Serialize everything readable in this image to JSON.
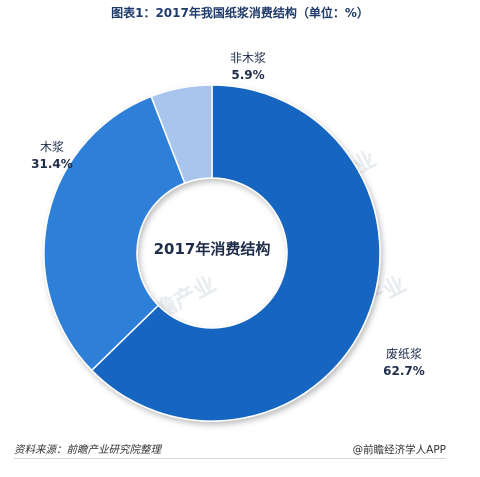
{
  "title": "图表1：2017年我国纸浆消费结构（单位：%）",
  "source": "资料来源：前瞻产业研究院整理",
  "credit": "@前瞻经济学人APP",
  "chart_data": {
    "type": "pie",
    "variant": "donut",
    "center_label": "2017年消费结构",
    "unit": "%",
    "slices": [
      {
        "label": "废纸浆",
        "value": 62.7,
        "value_label": "62.7%",
        "color": "#1565c0"
      },
      {
        "label": "木浆",
        "value": 31.4,
        "value_label": "31.4%",
        "color": "#2e7fd8"
      },
      {
        "label": "非木浆",
        "value": 5.9,
        "value_label": "5.9%",
        "color": "#a9c5ee"
      }
    ]
  },
  "colors": {
    "label_text": "#1f2d4a",
    "title_text": "#1f3b6b"
  }
}
